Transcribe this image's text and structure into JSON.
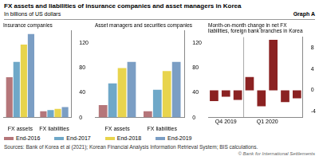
{
  "title": "FX assets and liabilities of insurance companies and asset managers in Korea",
  "subtitle": "In billions of US dollars",
  "annotations": [
    "Graph A",
    "Sources: Bank of Korea et al (2021); Korean Financial Analysis Information Retrieval System; BIS calculations.",
    "© Bank for International Settlements"
  ],
  "chart_data": [
    {
      "type": "bar",
      "title": "Insurance companies",
      "categories": [
        "FX assets",
        "FX liabilities"
      ],
      "series": [
        {
          "name": "End-2016",
          "color": "#b5767a",
          "values": [
            65,
            10
          ]
        },
        {
          "name": "End-2017",
          "color": "#6fa8c8",
          "values": [
            90,
            12
          ]
        },
        {
          "name": "End-2018",
          "color": "#e8d44d",
          "values": [
            118,
            14
          ]
        },
        {
          "name": "End-2019",
          "color": "#7b9ec4",
          "values": [
            135,
            17
          ]
        }
      ],
      "ylim": [
        0,
        140
      ],
      "yticks": [
        0,
        40,
        80,
        120
      ],
      "grid": false,
      "legend": "bottom"
    },
    {
      "type": "bar",
      "title": "Asset managers and securities companies",
      "categories": [
        "FX assets",
        "FX liabilities"
      ],
      "series": [
        {
          "name": "End-2016",
          "color": "#b5767a",
          "values": [
            20,
            10
          ]
        },
        {
          "name": "End-2017",
          "color": "#6fa8c8",
          "values": [
            55,
            45
          ]
        },
        {
          "name": "End-2018",
          "color": "#e8d44d",
          "values": [
            80,
            75
          ]
        },
        {
          "name": "End-2019",
          "color": "#7b9ec4",
          "values": [
            90,
            90
          ]
        }
      ],
      "ylim": [
        0,
        140
      ],
      "yticks": [
        0,
        40,
        80,
        120
      ],
      "grid": false
    },
    {
      "type": "bar",
      "title": "Month-on-month change in net FX\nliabilities, foreign bank branches in Korea",
      "categories": [
        null,
        null,
        null,
        null,
        null,
        null,
        null,
        null
      ],
      "values": [
        -2.0,
        -1.2,
        -1.8,
        2.5,
        -3.0,
        9.5,
        -2.2,
        -1.5
      ],
      "color": "#8b2222",
      "ylim": [
        -5,
        10
      ],
      "yticks": [
        -4,
        0,
        4,
        8
      ],
      "grid": false,
      "tick_labels": "y",
      "annotations": [
        "Q4 2019",
        "Q1 2020"
      ]
    }
  ]
}
